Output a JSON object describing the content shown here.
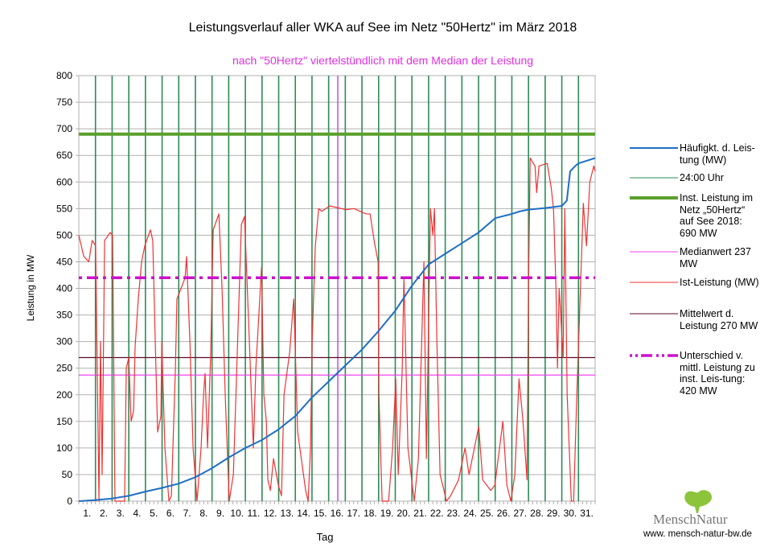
{
  "chart_data": {
    "type": "line",
    "title": "Leistungsverlauf aller WKA auf See im Netz \"50Hertz\" im März 2018",
    "subtitle": "nach \"50Hertz\" viertelstündlich mit dem Median der Leistung",
    "xlabel": "Tag",
    "ylabel": "Leistung in MW",
    "ylim": [
      0,
      800
    ],
    "xlim": [
      0,
      31
    ],
    "yticks": [
      0,
      50,
      100,
      150,
      200,
      250,
      300,
      350,
      400,
      450,
      500,
      550,
      600,
      650,
      700,
      750,
      800
    ],
    "xtick_labels": [
      "1.",
      "2.",
      "3.",
      "4.",
      "5.",
      "6.",
      "7.",
      "8.",
      "9.",
      "10.",
      "11.",
      "12.",
      "13.",
      "14.",
      "15.",
      "16.",
      "17.",
      "18.",
      "19.",
      "20.",
      "21.",
      "22.",
      "23.",
      "24.",
      "25.",
      "26.",
      "27.",
      "28.",
      "29.",
      "30.",
      "31."
    ],
    "grid": true,
    "legend_position": "right",
    "median_day_marker": 15.55,
    "series": [
      {
        "name": "Häufigkt. d. Leistung (MW)",
        "legend": "Häufigkt. d. Leis-tung (MW)",
        "color": "#1f6fc5",
        "style": "solid",
        "t": [
          0,
          1,
          2,
          3,
          4,
          5,
          6,
          7,
          8,
          9,
          10,
          11,
          12,
          13,
          14,
          15,
          16,
          17,
          18,
          19,
          20,
          21,
          22,
          23,
          24,
          25,
          26,
          26.5,
          27,
          28,
          29,
          29.3,
          29.5,
          29.8,
          30,
          30.5,
          31
        ],
        "values": [
          0,
          2,
          5,
          10,
          18,
          25,
          33,
          45,
          62,
          82,
          100,
          115,
          135,
          160,
          195,
          225,
          255,
          285,
          320,
          358,
          405,
          445,
          465,
          485,
          505,
          532,
          540,
          545,
          548,
          551,
          555,
          565,
          620,
          630,
          635,
          640,
          645
        ]
      },
      {
        "name": "24:00 Uhr",
        "legend": "24:00 Uhr",
        "color": "#2e8b57",
        "style": "vertical-day-lines"
      },
      {
        "name": "Inst. Leistung",
        "legend": "Inst. Leistung im Netz „50Hertz“ auf See 2018: 690 MW",
        "color": "#5aa02c",
        "value": 690,
        "style": "thick"
      },
      {
        "name": "Medianwert",
        "legend": "Medianwert 237 MW",
        "color": "#ee44ee",
        "value": 237,
        "style": "thin"
      },
      {
        "name": "Ist-Leistung (MW)",
        "legend": "Ist-Leistung (MW)",
        "color": "#ee3333",
        "style": "solid",
        "t": [
          0,
          0.3,
          0.6,
          0.8,
          1.01,
          1.21,
          1.3,
          1.4,
          1.55,
          1.88,
          2.03,
          2.17,
          2.75,
          2.85,
          3.0,
          3.14,
          3.29,
          3.38,
          3.57,
          3.77,
          3.96,
          4.3,
          4.44,
          4.59,
          4.73,
          4.93,
          4.98,
          5.17,
          5.41,
          5.56,
          5.8,
          5.89,
          6.14,
          6.38,
          6.47,
          6.67,
          6.86,
          7.1,
          7.34,
          7.49,
          7.58,
          7.73,
          7.92,
          8.07,
          8.41,
          8.6,
          8.79,
          9.03,
          9.28,
          9.76,
          9.95,
          10.24,
          10.48,
          10.63,
          10.97,
          11.11,
          11.26,
          11.35,
          11.5,
          11.69,
          11.98,
          12.17,
          12.32,
          12.66,
          12.9,
          13.04,
          13.14,
          13.62,
          13.77,
          13.91,
          14.01,
          14.2,
          14.4,
          14.59,
          15.07,
          16.04,
          16.52,
          17.25,
          17.49,
          17.73,
          17.97,
          18.02,
          18.21,
          18.6,
          18.84,
          19.03,
          19.18,
          19.42,
          19.52,
          19.76,
          20.14,
          20.39,
          20.72,
          20.87,
          21.11,
          21.26,
          21.35,
          21.5,
          21.69,
          22.08,
          22.32,
          22.8,
          23.19,
          23.43,
          24.01,
          24.25,
          24.73,
          24.98,
          25.46,
          25.7,
          25.94,
          26.18,
          26.43,
          26.67,
          26.91,
          27.0,
          27.1,
          27.39,
          27.49,
          27.63,
          28.12,
          28.36,
          28.5,
          28.65,
          28.74,
          28.84,
          29.08,
          29.18,
          29.32,
          29.57,
          29.71,
          29.9,
          30.14,
          30.29,
          30.48,
          30.68,
          30.92,
          31.0
        ],
        "values": [
          500,
          460,
          450,
          490,
          480,
          0,
          300,
          50,
          490,
          505,
          500,
          0,
          0,
          250,
          270,
          150,
          170,
          290,
          380,
          450,
          480,
          510,
          490,
          300,
          130,
          160,
          300,
          100,
          0,
          10,
          250,
          380,
          400,
          420,
          460,
          300,
          100,
          0,
          100,
          200,
          240,
          100,
          280,
          510,
          540,
          400,
          200,
          0,
          50,
          520,
          535,
          300,
          100,
          250,
          440,
          200,
          150,
          40,
          20,
          80,
          30,
          10,
          200,
          280,
          380,
          240,
          130,
          20,
          0,
          100,
          300,
          480,
          550,
          545,
          555,
          548,
          550,
          540,
          540,
          490,
          450,
          200,
          0,
          0,
          100,
          230,
          50,
          250,
          420,
          100,
          0,
          80,
          450,
          80,
          550,
          500,
          550,
          300,
          50,
          0,
          10,
          40,
          100,
          50,
          140,
          40,
          20,
          30,
          150,
          30,
          0,
          50,
          230,
          150,
          40,
          400,
          645,
          630,
          580,
          630,
          635,
          590,
          550,
          400,
          250,
          400,
          270,
          550,
          200,
          0,
          0,
          200,
          420,
          560,
          480,
          600,
          630,
          620
        ]
      },
      {
        "name": "Mittelwert d. Leistung",
        "legend": "Mittelwert d. Leistung 270 MW",
        "color": "#5a0a2a",
        "value": 270,
        "style": "thin"
      },
      {
        "name": "Unterschied v. mittl. Leistung zu inst. Leistung",
        "legend": "Unterschied v. mittl. Leistung zu inst. Leis-tung: 420 MW",
        "color": "#cc11cc",
        "value": 420,
        "style": "dash-dot"
      }
    ]
  },
  "legend_labels": {
    "haeufigkeit": "Häufigkt. d. Leis-tung (MW)",
    "uhr": "24:00 Uhr",
    "inst": "Inst. Leistung im Netz „50Hertz“ auf See 2018: 690 MW",
    "median": "Medianwert 237 MW",
    "ist": "Ist-Leistung (MW)",
    "mittel": "Mittelwert d. Leistung 270 MW",
    "unterschied": "Unterschied v. mittl. Leistung zu inst. Leis-tung: 420 MW"
  },
  "logo": {
    "brand": "MenschNatur",
    "url": "www. mensch-natur-bw.de"
  }
}
